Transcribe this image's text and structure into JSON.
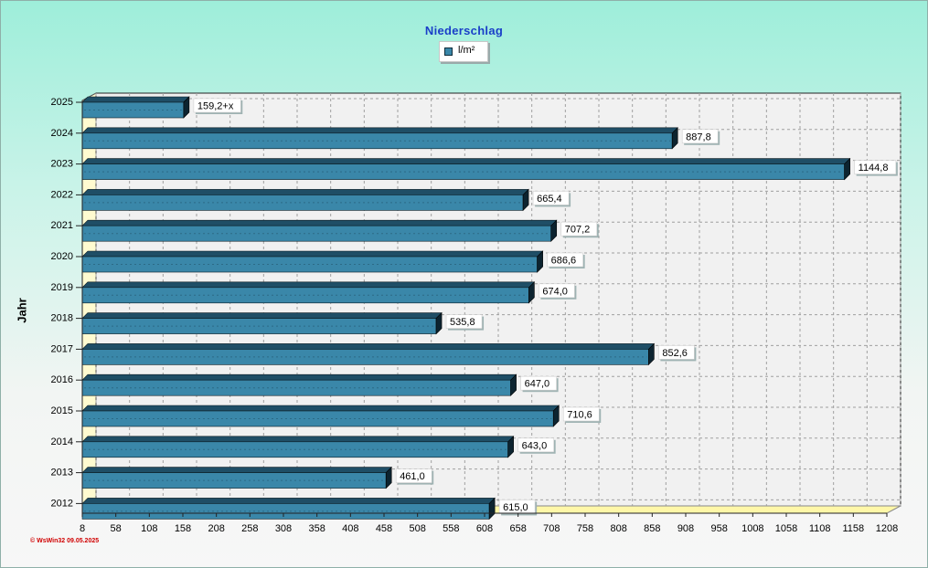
{
  "chart_data": {
    "type": "bar",
    "orientation": "horizontal",
    "title": "Niederschlag",
    "ylabel": "Jahr",
    "xlabel": "",
    "categories": [
      "2025",
      "2024",
      "2023",
      "2022",
      "2021",
      "2020",
      "2019",
      "2018",
      "2017",
      "2016",
      "2015",
      "2014",
      "2013",
      "2012"
    ],
    "series": [
      {
        "name": "l/m²",
        "values": [
          159.2,
          887.8,
          1144.8,
          665.4,
          707.2,
          686.6,
          674.0,
          535.8,
          852.6,
          647.0,
          710.6,
          643.0,
          461.0,
          615.0
        ],
        "labels": [
          "159,2+x",
          "887,8",
          "1144,8",
          "665,4",
          "707,2",
          "686,6",
          "674,0",
          "535,8",
          "852,6",
          "647,0",
          "710,6",
          "643,0",
          "461,0",
          "615,0"
        ]
      }
    ],
    "xticks": [
      "8",
      "58",
      "108",
      "158",
      "208",
      "258",
      "308",
      "358",
      "408",
      "458",
      "508",
      "558",
      "608",
      "658",
      "708",
      "758",
      "808",
      "858",
      "908",
      "958",
      "1008",
      "1058",
      "1108",
      "1158",
      "1208"
    ],
    "xlim": [
      8,
      1208
    ],
    "grid": true,
    "legend_position": "top-center",
    "colors": {
      "bar": "#3a87a9",
      "bar_top": "#1f4e66",
      "bar_side": "#0d2430",
      "floor": "#fff7a8",
      "wall": "#fffbd0"
    }
  },
  "footer": "© WsWin32  09.05.2025"
}
